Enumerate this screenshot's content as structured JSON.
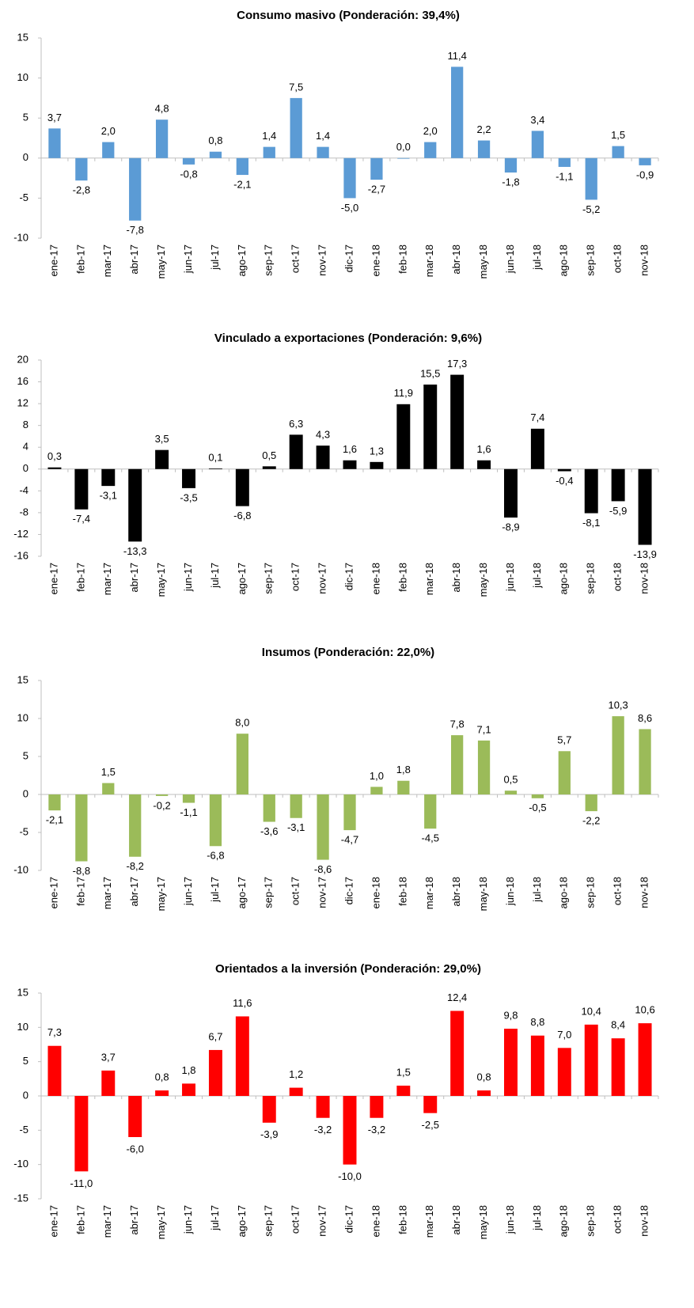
{
  "chart_data": [
    {
      "type": "bar",
      "title": "Consumo masivo (Ponderación: 39,4%)",
      "color": "#5b9bd5",
      "categories": [
        "ene-17",
        "feb-17",
        "mar-17",
        "abr-17",
        "may-17",
        "jun-17",
        "jul-17",
        "ago-17",
        "sep-17",
        "oct-17",
        "nov-17",
        "dic-17",
        "ene-18",
        "feb-18",
        "mar-18",
        "abr-18",
        "may-18",
        "jun-18",
        "jul-18",
        "ago-18",
        "sep-18",
        "oct-18",
        "nov-18"
      ],
      "values": [
        3.7,
        -2.8,
        2.0,
        -7.8,
        4.8,
        -0.8,
        0.8,
        -2.1,
        1.4,
        7.5,
        1.4,
        -5.0,
        -2.7,
        0.0,
        2.0,
        11.4,
        2.2,
        -1.8,
        3.4,
        -1.1,
        -5.2,
        1.5,
        -0.9
      ],
      "value_labels": [
        "3,7",
        "-2,8",
        "2,0",
        "-7,8",
        "4,8",
        "-0,8",
        "0,8",
        "-2,1",
        "1,4",
        "7,5",
        "1,4",
        "-5,0",
        "-2,7",
        "0,0",
        "2,0",
        "11,4",
        "2,2",
        "-1,8",
        "3,4",
        "-1,1",
        "-5,2",
        "1,5",
        "-0,9"
      ],
      "ylim": [
        -10,
        15
      ],
      "yticks": [
        -10,
        -5,
        0,
        5,
        10,
        15
      ]
    },
    {
      "type": "bar",
      "title": "Vinculado a exportaciones (Ponderación: 9,6%)",
      "color": "#000000",
      "categories": [
        "ene-17",
        "feb-17",
        "mar-17",
        "abr-17",
        "may-17",
        "jun-17",
        "jul-17",
        "ago-17",
        "sep-17",
        "oct-17",
        "nov-17",
        "dic-17",
        "ene-18",
        "feb-18",
        "mar-18",
        "abr-18",
        "may-18",
        "jun-18",
        "jul-18",
        "ago-18",
        "sep-18",
        "oct-18",
        "nov-18"
      ],
      "values": [
        0.3,
        -7.4,
        -3.1,
        -13.3,
        3.5,
        -3.5,
        0.1,
        -6.8,
        0.5,
        6.3,
        4.3,
        1.6,
        1.3,
        11.9,
        15.5,
        17.3,
        1.6,
        -8.9,
        7.4,
        -0.4,
        -8.1,
        -5.9,
        -13.9
      ],
      "value_labels": [
        "0,3",
        "-7,4",
        "-3,1",
        "-13,3",
        "3,5",
        "-3,5",
        "0,1",
        "-6,8",
        "0,5",
        "6,3",
        "4,3",
        "1,6",
        "1,3",
        "11,9",
        "15,5",
        "17,3",
        "1,6",
        "-8,9",
        "7,4",
        "-0,4",
        "-8,1",
        "-5,9",
        "-13,9"
      ],
      "ylim": [
        -16,
        20
      ],
      "yticks": [
        -16,
        -12,
        -8,
        -4,
        0,
        4,
        8,
        12,
        16,
        20
      ]
    },
    {
      "type": "bar",
      "title": "Insumos (Ponderación: 22,0%)",
      "color": "#9bbb59",
      "categories": [
        "ene-17",
        "feb-17",
        "mar-17",
        "abr-17",
        "may-17",
        "jun-17",
        "jul-17",
        "ago-17",
        "sep-17",
        "oct-17",
        "nov-17",
        "dic-17",
        "ene-18",
        "feb-18",
        "mar-18",
        "abr-18",
        "may-18",
        "jun-18",
        "jul-18",
        "ago-18",
        "sep-18",
        "oct-18",
        "nov-18"
      ],
      "values": [
        -2.1,
        -8.8,
        1.5,
        -8.2,
        -0.2,
        -1.1,
        -6.8,
        8.0,
        -3.6,
        -3.1,
        -8.6,
        -4.7,
        1.0,
        1.8,
        -4.5,
        7.8,
        7.1,
        0.5,
        -0.5,
        5.7,
        -2.2,
        10.3,
        8.6
      ],
      "value_labels": [
        "-2,1",
        "-8,8",
        "1,5",
        "-8,2",
        "-0,2",
        "-1,1",
        "-6,8",
        "8,0",
        "-3,6",
        "-3,1",
        "-8,6",
        "-4,7",
        "1,0",
        "1,8",
        "-4,5",
        "7,8",
        "7,1",
        "0,5",
        "-0,5",
        "5,7",
        "-2,2",
        "10,3",
        "8,6"
      ],
      "ylim": [
        -10,
        15
      ],
      "yticks": [
        -10,
        -5,
        0,
        5,
        10,
        15
      ]
    },
    {
      "type": "bar",
      "title": "Orientados a la inversión (Ponderación: 29,0%)",
      "color": "#ff0000",
      "categories": [
        "ene-17",
        "feb-17",
        "mar-17",
        "abr-17",
        "may-17",
        "jun-17",
        "jul-17",
        "ago-17",
        "sep-17",
        "oct-17",
        "nov-17",
        "dic-17",
        "ene-18",
        "feb-18",
        "mar-18",
        "abr-18",
        "may-18",
        "jun-18",
        "jul-18",
        "ago-18",
        "sep-18",
        "oct-18",
        "nov-18"
      ],
      "values": [
        7.3,
        -11.0,
        3.7,
        -6.0,
        0.8,
        1.8,
        6.7,
        11.6,
        -3.9,
        1.2,
        -3.2,
        -10.0,
        -3.2,
        1.5,
        -2.5,
        12.4,
        0.8,
        9.8,
        8.8,
        7.0,
        10.4,
        8.4,
        10.6
      ],
      "value_labels": [
        "7,3",
        "-11,0",
        "3,7",
        "-6,0",
        "0,8",
        "1,8",
        "6,7",
        "11,6",
        "-3,9",
        "1,2",
        "-3,2",
        "-10,0",
        "-3,2",
        "1,5",
        "-2,5",
        "12,4",
        "0,8",
        "9,8",
        "8,8",
        "7,0",
        "10,4",
        "8,4",
        "10,6"
      ],
      "ylim": [
        -15,
        15
      ],
      "yticks": [
        -15,
        -10,
        -5,
        0,
        5,
        10,
        15
      ]
    }
  ]
}
